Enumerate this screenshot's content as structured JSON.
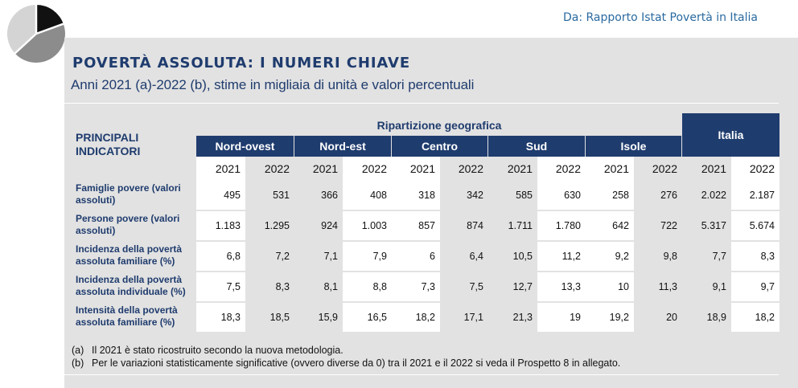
{
  "source": "Da: Rapporto Istat Povertà in Italia",
  "title": "POVERTÀ ASSOLUTA: I NUMERI CHIAVE",
  "subtitle": "Anni 2021 (a)-2022 (b), stime in migliaia di unità e valori percentuali",
  "table": {
    "corner_label": "PRINCIPALI INDICATORI",
    "group_label": "Ripartizione geografica",
    "total_label": "Italia",
    "regions": [
      "Nord-ovest",
      "Nord-est",
      "Centro",
      "Sud",
      "Isole"
    ],
    "years": [
      "2021",
      "2022",
      "2021",
      "2022",
      "2021",
      "2022",
      "2021",
      "2022",
      "2021",
      "2022",
      "2021",
      "2022"
    ],
    "rows": [
      {
        "label": "Famiglie povere (valori assoluti)",
        "values": [
          "495",
          "531",
          "366",
          "408",
          "318",
          "342",
          "585",
          "630",
          "258",
          "276",
          "2.022",
          "2.187"
        ]
      },
      {
        "label": "Persone povere (valori assoluti)",
        "values": [
          "1.183",
          "1.295",
          "924",
          "1.003",
          "857",
          "874",
          "1.711",
          "1.780",
          "642",
          "722",
          "5.317",
          "5.674"
        ]
      },
      {
        "label": "Incidenza della povertà assoluta familiare (%)",
        "values": [
          "6,8",
          "7,2",
          "7,1",
          "7,9",
          "6",
          "6,4",
          "10,5",
          "11,2",
          "9,2",
          "9,8",
          "7,7",
          "8,3"
        ]
      },
      {
        "label": "Incidenza della povertà assoluta individuale (%)",
        "values": [
          "7,5",
          "8,3",
          "8,1",
          "8,8",
          "7,3",
          "7,5",
          "12,7",
          "13,3",
          "10",
          "11,3",
          "9,1",
          "9,7"
        ]
      },
      {
        "label": "Intensità della povertà assoluta familiare (%)",
        "values": [
          "18,3",
          "18,5",
          "15,9",
          "16,5",
          "18,2",
          "17,1",
          "21,3",
          "19",
          "19,2",
          "20",
          "18,9",
          "18,2"
        ]
      }
    ]
  },
  "notes": [
    {
      "key": "(a)",
      "text": "Il 2021 è stato ricostruito secondo la nuova metodologia."
    },
    {
      "key": "(b)",
      "text": "Per le variazioni statisticamente significative (ovvero diverse da 0) tra il 2021 e il 2022 si veda il Prospetto 8 in allegato."
    }
  ],
  "colors": {
    "navy": "#1f3c6e",
    "panel": "#e2e2e2",
    "source_blue": "#2a6aa0"
  },
  "logo_icon": "pie-chart-icon"
}
